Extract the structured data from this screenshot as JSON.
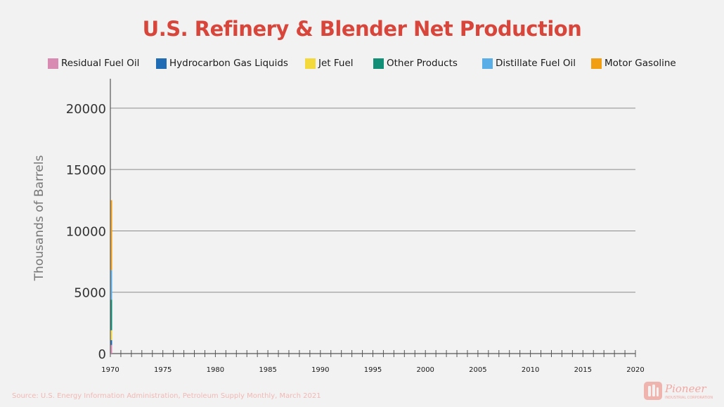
{
  "title": "U.S. Refinery & Blender Net Production",
  "legend": [
    {
      "label": "Residual Fuel Oil",
      "color": "#d98ab3"
    },
    {
      "label": "Hydrocarbon Gas Liquids",
      "color": "#1f6cb5"
    },
    {
      "label": "Jet Fuel",
      "color": "#f4d93c"
    },
    {
      "label": "Other Products",
      "color": "#119077"
    },
    {
      "label": "Distillate Fuel Oil",
      "color": "#5aaee8"
    },
    {
      "label": "Motor Gasoline",
      "color": "#f29e12"
    }
  ],
  "source": "Source: U.S. Energy Information Administration, Petroleum Supply Monthly, March 2021",
  "logo": {
    "name": "Pioneer",
    "tagline": "INDUSTRIAL CORPORATION",
    "color": "#d8453a"
  },
  "chart_data": {
    "type": "area",
    "stacked": true,
    "title": "U.S. Refinery & Blender Net Production",
    "ylabel": "Thousands of Barrels",
    "xlabel": "",
    "x": [
      1970
    ],
    "xlim": [
      1970,
      2020
    ],
    "ylim": [
      0,
      22400
    ],
    "x_ticks": [
      1970,
      1975,
      1980,
      1985,
      1990,
      1995,
      2000,
      2005,
      2010,
      2015,
      2020
    ],
    "y_ticks": [
      0,
      5000,
      10000,
      15000,
      20000
    ],
    "grid": "horizontal",
    "legend_position": "top",
    "series": [
      {
        "name": "Residual Fuel Oil",
        "color": "#d98ab3",
        "values": [
          700
        ]
      },
      {
        "name": "Hydrocarbon Gas Liquids",
        "color": "#1f6cb5",
        "values": [
          400
        ]
      },
      {
        "name": "Jet Fuel",
        "color": "#f4d93c",
        "values": [
          800
        ]
      },
      {
        "name": "Other Products",
        "color": "#119077",
        "values": [
          2500
        ]
      },
      {
        "name": "Distillate Fuel Oil",
        "color": "#5aaee8",
        "values": [
          2400
        ]
      },
      {
        "name": "Motor Gasoline",
        "color": "#f29e12",
        "values": [
          5700
        ]
      }
    ]
  }
}
